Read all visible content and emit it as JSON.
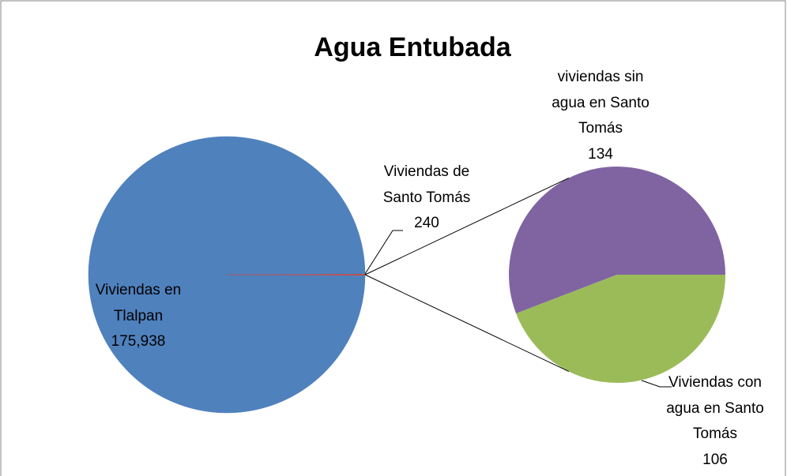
{
  "chart_data": {
    "type": "pie-of-pie",
    "title": "Agua Entubada",
    "categories": [
      "Viviendas en Tlalpan",
      "Viviendas de Santo Tomás"
    ],
    "values": [
      175938,
      240
    ],
    "value_labels": [
      "175,938",
      "240"
    ],
    "colors": [
      "#4f81bd",
      "#c0504d"
    ],
    "secondary": {
      "categories": [
        "viviendas sin agua en Santo Tomás",
        "Viviendas con agua en Santo Tomás"
      ],
      "values": [
        134,
        106
      ],
      "colors": [
        "#8064a2",
        "#9bbb59"
      ]
    }
  }
}
